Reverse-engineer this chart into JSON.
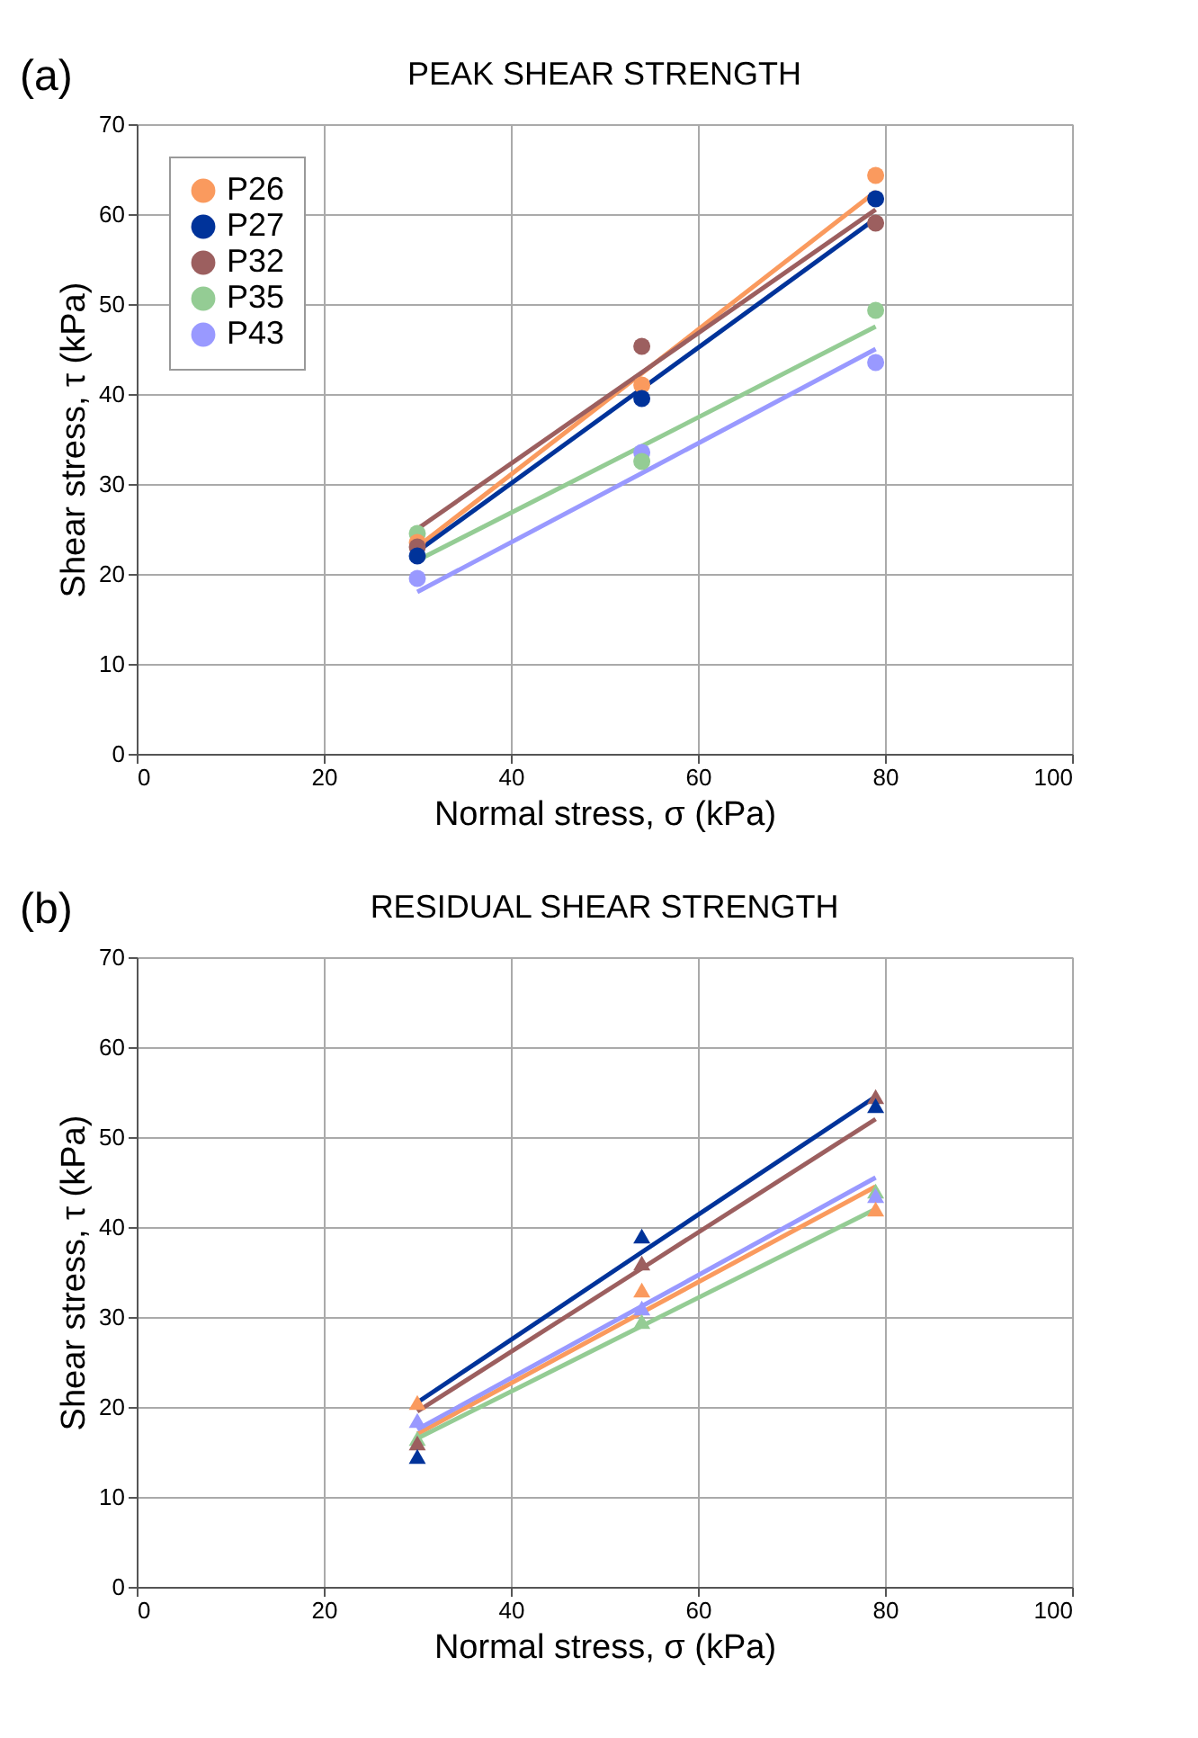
{
  "chart_data": [
    {
      "type": "scatter",
      "title": "PEAK SHEAR STRENGTH",
      "xlabel": "Normal stress, σ (kPa)",
      "ylabel": "Shear stress, τ (kPa)",
      "annotations": [
        "(a)"
      ],
      "x": [
        30,
        54,
        79
      ],
      "xlim": [
        0,
        100
      ],
      "xticks": [
        0,
        20,
        40,
        60,
        80,
        100
      ],
      "ylim": [
        0,
        70
      ],
      "yticks": [
        0,
        10,
        20,
        30,
        40,
        50,
        60,
        70
      ],
      "grid": true,
      "legend": "top left",
      "series": [
        {
          "name": "P26",
          "color": "#fa9a5e",
          "marker": "circle",
          "values": [
            23.5,
            41,
            64.3
          ]
        },
        {
          "name": "P27",
          "color": "#00339a",
          "marker": "circle",
          "values": [
            22,
            39.5,
            61.7
          ]
        },
        {
          "name": "P32",
          "color": "#9c5f5f",
          "marker": "circle",
          "values": [
            23,
            45.3,
            59
          ]
        },
        {
          "name": "P35",
          "color": "#94cc94",
          "marker": "circle",
          "values": [
            24.5,
            32.5,
            49.3
          ]
        },
        {
          "name": "P43",
          "color": "#9999ff",
          "marker": "circle",
          "values": [
            19.5,
            33.5,
            43.5
          ]
        },
        {
          "type": "line",
          "color": "#fa9a5e",
          "marker": "none",
          "values": [
            23,
            42.3,
            62.5
          ]
        },
        {
          "type": "line",
          "color": "#00339a",
          "marker": "none",
          "values": [
            22.5,
            40.6,
            59.5
          ]
        },
        {
          "type": "line",
          "color": "#9c5f5f",
          "marker": "none",
          "values": [
            25,
            42.4,
            60.5
          ]
        },
        {
          "type": "line",
          "color": "#94cc94",
          "marker": "none",
          "values": [
            21.5,
            34.2,
            47.5
          ]
        },
        {
          "type": "line",
          "color": "#9999ff",
          "marker": "none",
          "values": [
            18,
            31.2,
            45
          ]
        }
      ]
    },
    {
      "type": "scatter",
      "title": "RESIDUAL SHEAR STRENGTH",
      "xlabel": "Normal stress, σ (kPa)",
      "ylabel": "Shear stress, τ (kPa)",
      "annotations": [
        "(b)"
      ],
      "x": [
        30,
        54,
        79
      ],
      "xlim": [
        0,
        100
      ],
      "xticks": [
        0,
        20,
        40,
        60,
        80,
        100
      ],
      "ylim": [
        0,
        70
      ],
      "yticks": [
        0,
        10,
        20,
        30,
        40,
        50,
        60,
        70
      ],
      "grid": true,
      "legend": "top left",
      "series": [
        {
          "name": "P26",
          "color": "#fa9a5e",
          "marker": "triangle",
          "values": [
            20.5,
            33,
            42
          ]
        },
        {
          "name": "P27",
          "color": "#00339a",
          "marker": "triangle",
          "values": [
            14.5,
            39,
            53.5
          ]
        },
        {
          "name": "P32",
          "color": "#9c5f5f",
          "marker": "triangle",
          "values": [
            16,
            36,
            54.5
          ]
        },
        {
          "name": "P35",
          "color": "#94cc94",
          "marker": "triangle",
          "values": [
            16.5,
            29.5,
            44
          ]
        },
        {
          "name": "P43",
          "color": "#9999ff",
          "marker": "triangle",
          "values": [
            18.5,
            31,
            43.5
          ]
        },
        {
          "type": "line",
          "color": "#fa9a5e",
          "marker": "none",
          "values": [
            17,
            30.5,
            44.5
          ]
        },
        {
          "type": "line",
          "color": "#00339a",
          "marker": "none",
          "values": [
            20.5,
            37.2,
            54.5
          ]
        },
        {
          "type": "line",
          "color": "#9c5f5f",
          "marker": "none",
          "values": [
            19.5,
            35.4,
            52
          ]
        },
        {
          "type": "line",
          "color": "#94cc94",
          "marker": "none",
          "values": [
            16.5,
            29,
            42
          ]
        },
        {
          "type": "line",
          "color": "#9999ff",
          "marker": "none",
          "values": [
            17.5,
            31.2,
            45.5
          ]
        }
      ]
    }
  ]
}
